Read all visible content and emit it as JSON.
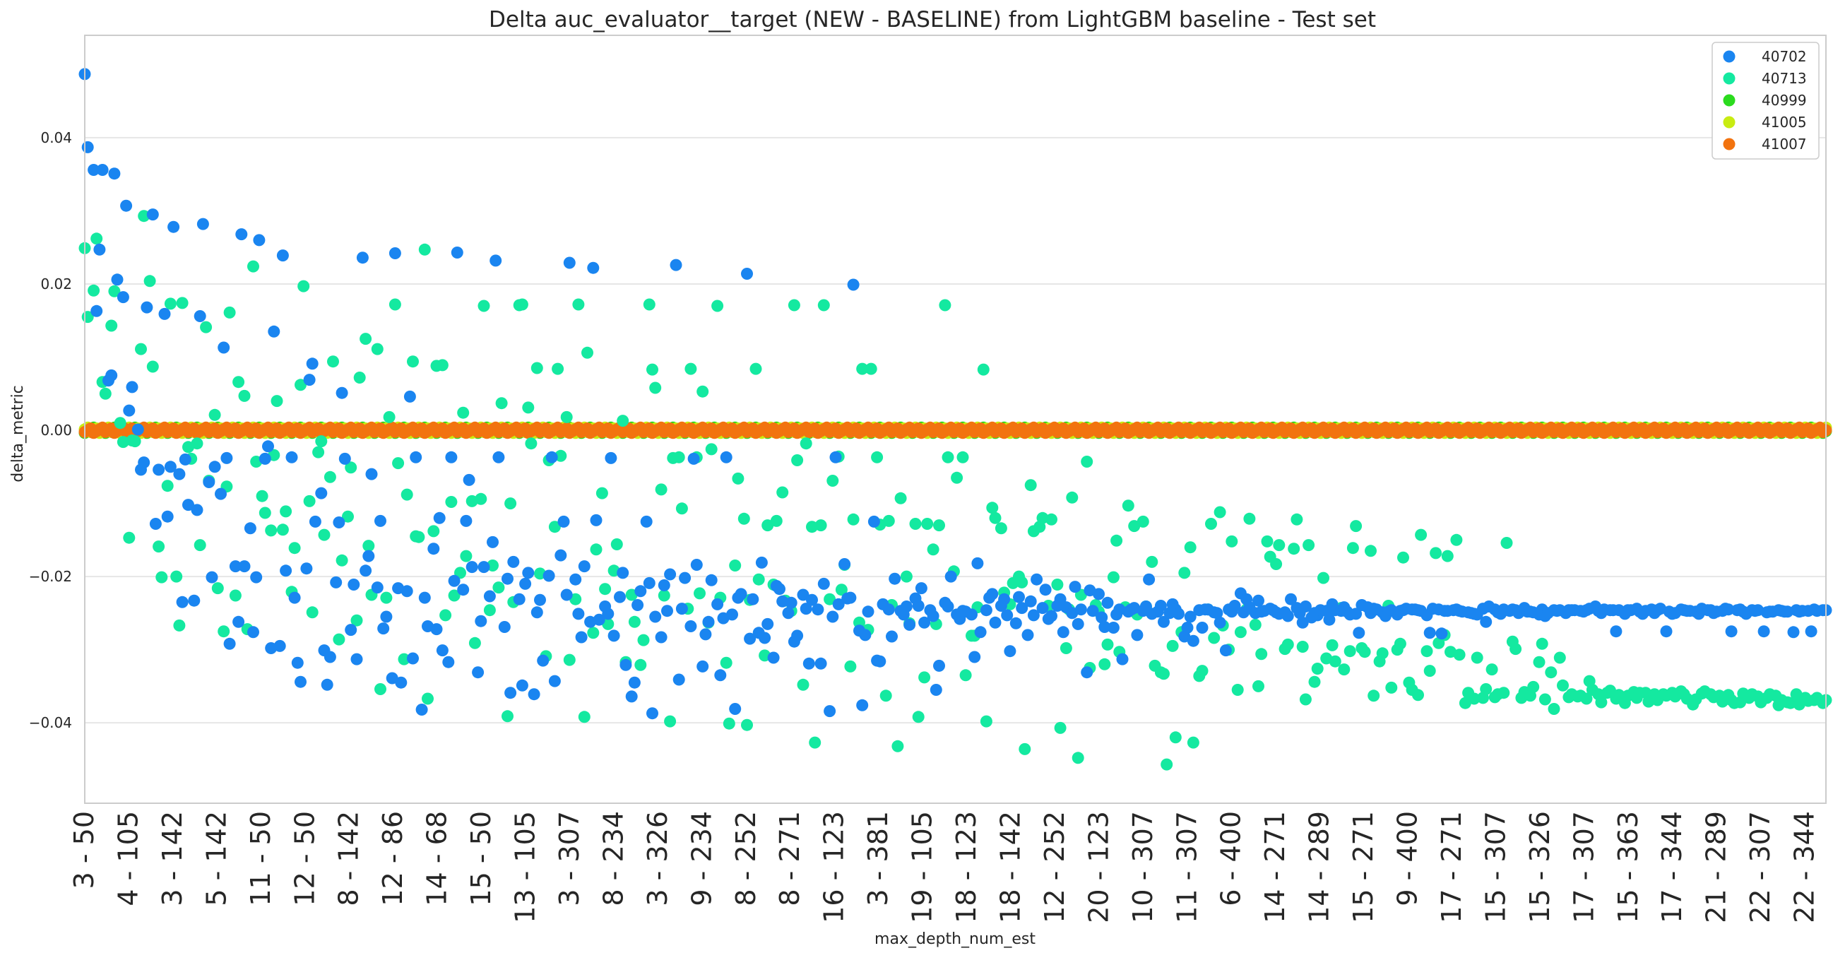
{
  "chart_data": {
    "type": "scatter",
    "title": "Delta auc_evaluator__target (NEW - BASELINE) from LightGBM baseline - Test set",
    "xlabel": "max_depth_num_est",
    "ylabel": "delta_metric",
    "ylim": [
      -0.051,
      0.054
    ],
    "y_ticks": [
      -0.04,
      -0.02,
      0.0,
      0.02,
      0.04
    ],
    "y_tick_labels": [
      "−0.04",
      "−0.02",
      "0.00",
      "0.02",
      "0.04"
    ],
    "x_tick_labels": [
      "3 - 50",
      "4 - 105",
      "3 - 142",
      "5 - 142",
      "11 - 50",
      "12 - 50",
      "8 - 142",
      "12 - 86",
      "14 - 68",
      "15 - 50",
      "13 - 105",
      "3 - 307",
      "8 - 234",
      "3 - 326",
      "9 - 234",
      "8 - 252",
      "8 - 271",
      "16 - 123",
      "3 - 381",
      "19 - 105",
      "18 - 123",
      "18 - 142",
      "12 - 252",
      "20 - 123",
      "10 - 307",
      "11 - 307",
      "6 - 400",
      "14 - 271",
      "14 - 289",
      "15 - 271",
      "9 - 400",
      "17 - 271",
      "15 - 307",
      "15 - 326",
      "17 - 307",
      "15 - 363",
      "17 - 344",
      "21 - 289",
      "22 - 307",
      "22 - 344"
    ],
    "grid": "horizontal",
    "legend_position": "top-right",
    "point_count": 590,
    "series": [
      {
        "name": "40702",
        "color": "#1a85f0",
        "values": [
          0.0487,
          0.0387,
          0.0356,
          0.0163,
          0.0247,
          0.0356,
          0.0068,
          0.0075,
          0.0351,
          0.0206,
          0.0182,
          0.0307,
          0.0027,
          0.0059,
          0.0001,
          -0.0054,
          -0.0044,
          0.0168,
          0.0295,
          -0.0128,
          -0.0054,
          0.0159,
          -0.0118,
          -0.005,
          0.0278,
          -0.006,
          -0.0235,
          -0.004,
          -0.0102,
          -0.0233,
          -0.0109,
          0.0156,
          0.0282,
          -0.0071,
          -0.0201,
          -0.005,
          -0.0087,
          0.0113,
          -0.0038,
          -0.0292,
          -0.0186,
          -0.0262,
          0.0268,
          -0.0186,
          -0.0134,
          -0.0276,
          -0.0201,
          0.026,
          -0.0039,
          -0.0022,
          -0.0298,
          0.0135,
          -0.0295,
          0.0239,
          -0.0192,
          -0.0037,
          -0.0229,
          -0.0318,
          -0.0344,
          -0.0189,
          0.0069,
          0.0091,
          -0.0125,
          -0.0086,
          -0.0301,
          -0.0348,
          -0.031,
          -0.0208,
          -0.0126,
          0.0051,
          -0.0039,
          -0.0273,
          -0.0211,
          -0.0313,
          0.0236,
          -0.0192,
          -0.0172,
          -0.006,
          -0.0215,
          -0.0124,
          -0.0271,
          -0.0255,
          -0.0339,
          0.0242,
          -0.0216,
          -0.0345,
          -0.022,
          0.0046,
          -0.0312,
          -0.0037,
          -0.0382,
          -0.0229,
          -0.0268,
          -0.0162,
          -0.0272,
          -0.012,
          -0.0301,
          -0.0317,
          -0.0037,
          -0.0206,
          0.0243,
          -0.0218,
          -0.0124,
          -0.0068,
          -0.0187,
          -0.0331,
          -0.0261,
          -0.0187,
          -0.0227,
          -0.0153,
          0.0232,
          -0.0037,
          -0.0269,
          -0.0203,
          -0.0359,
          -0.018,
          -0.0231,
          -0.0349,
          -0.021,
          -0.0195,
          -0.0361,
          -0.0249,
          -0.0232,
          -0.0315,
          -0.0199,
          -0.0037,
          -0.0343,
          -0.0171,
          -0.0125,
          -0.0225,
          0.0229,
          -0.0204,
          -0.0251,
          -0.0283,
          -0.0186,
          -0.0262,
          0.0222,
          -0.0123,
          -0.0259,
          -0.0241,
          -0.0251,
          -0.0038,
          -0.0281,
          -0.0228,
          -0.0195,
          -0.0321,
          -0.0364,
          -0.0345,
          -0.0239,
          -0.022,
          -0.0125,
          -0.0209,
          -0.0387,
          -0.0255,
          -0.0283,
          -0.0212,
          -0.0247,
          -0.0197,
          0.0226,
          -0.0341,
          -0.0244,
          -0.0202,
          -0.0268,
          -0.0039,
          -0.0184,
          -0.0323,
          -0.0279,
          -0.0262,
          -0.0205,
          -0.0238,
          -0.0335,
          -0.0257,
          -0.0037,
          -0.0252,
          -0.0381,
          -0.0229,
          -0.0224,
          0.0214,
          -0.0285,
          -0.0231,
          -0.0277,
          -0.0181,
          -0.0284,
          -0.0265,
          -0.0311,
          -0.0213,
          -0.0217,
          -0.0234,
          -0.025,
          -0.0236,
          -0.0289,
          -0.0281,
          -0.0225,
          -0.0244,
          -0.0319,
          -0.0232,
          -0.0245,
          -0.0319,
          -0.021,
          -0.0384,
          -0.0255,
          -0.0037,
          -0.0238,
          -0.0183,
          -0.023,
          -0.0229,
          0.0199,
          -0.0274,
          -0.0376,
          -0.028,
          -0.0248,
          -0.0125,
          -0.0315,
          -0.0316,
          -0.0238,
          -0.0245,
          -0.0282,
          -0.0203,
          -0.0247,
          -0.0252,
          -0.0241,
          -0.0266,
          -0.023,
          -0.024,
          -0.0216,
          -0.0263,
          -0.0246,
          -0.0254,
          -0.0355,
          -0.0322,
          -0.0236,
          -0.0241,
          -0.02,
          -0.0252,
          -0.0258,
          -0.0247,
          -0.0248,
          -0.0252,
          -0.031,
          -0.0182,
          -0.0276,
          -0.0246,
          -0.0229,
          -0.0224,
          -0.0263,
          -0.024,
          -0.0231,
          -0.0253,
          -0.0302,
          -0.0264,
          -0.0228,
          -0.0243,
          -0.028,
          -0.0234,
          -0.0253,
          -0.0204,
          -0.0243,
          -0.0218,
          -0.0258,
          -0.0254,
          -0.024,
          -0.0231,
          -0.0276,
          -0.0242,
          -0.025,
          -0.0214,
          -0.0265,
          -0.0245,
          -0.0331,
          -0.0219,
          -0.0247,
          -0.0224,
          -0.0256,
          -0.0269,
          -0.0236,
          -0.027,
          -0.0252,
          -0.0245,
          -0.0313,
          -0.0248,
          -0.0245,
          -0.0243,
          -0.028,
          -0.0247,
          -0.0241,
          -0.0204,
          -0.0251,
          -0.0248,
          -0.024,
          -0.0262,
          -0.025,
          -0.0238,
          -0.0245,
          -0.0251,
          -0.0282,
          -0.027,
          -0.0255,
          -0.0288,
          -0.0246,
          -0.027,
          -0.0245,
          -0.0245,
          -0.0249,
          -0.025,
          -0.0263,
          -0.0301,
          -0.0245,
          -0.0248,
          -0.024,
          -0.0223,
          -0.0249,
          -0.0231,
          -0.0242,
          -0.025,
          -0.0233,
          -0.0248,
          -0.0247,
          -0.0244,
          -0.0246,
          -0.0249,
          -0.0251,
          -0.0249,
          -0.0254,
          -0.0231,
          -0.0243,
          -0.025,
          -0.0263,
          -0.0241,
          -0.0256,
          -0.025,
          -0.0253,
          -0.0246,
          -0.0247,
          -0.0259,
          -0.0238,
          -0.0246,
          -0.0247,
          -0.0242,
          -0.0248,
          -0.0252,
          -0.0251,
          -0.0277,
          -0.0239,
          -0.0242,
          -0.025,
          -0.0244,
          -0.0245,
          -0.0249,
          -0.0254,
          -0.0248,
          -0.0246,
          -0.0252,
          -0.0247,
          -0.0246,
          -0.0244,
          -0.0245,
          -0.0245,
          -0.0246,
          -0.0247,
          -0.0253,
          -0.0277,
          -0.0244,
          -0.0245,
          -0.0278,
          -0.0247,
          -0.0247,
          -0.0246,
          -0.0245,
          -0.0247,
          -0.0248,
          -0.0249,
          -0.025,
          -0.0251,
          -0.0252,
          -0.0244,
          -0.0262,
          -0.0241,
          -0.0245,
          -0.0249,
          -0.0251,
          -0.0245,
          -0.0247,
          -0.0245,
          -0.0246,
          -0.025,
          -0.0243,
          -0.0248,
          -0.0248,
          -0.0249,
          -0.0252,
          -0.0245,
          -0.0254,
          -0.025,
          -0.0246,
          -0.0247,
          -0.0246,
          -0.025,
          -0.0246,
          -0.0246,
          -0.0246,
          -0.0247,
          -0.0248,
          -0.0246,
          -0.0244,
          -0.0241,
          -0.0247,
          -0.025,
          -0.0245,
          -0.0246,
          -0.0246,
          -0.0275,
          -0.0246,
          -0.0251,
          -0.0246,
          -0.0246,
          -0.0244,
          -0.0248,
          -0.0251,
          -0.0247,
          -0.0245,
          -0.025,
          -0.0246,
          -0.0244,
          -0.0275,
          -0.0248,
          -0.0251,
          -0.025,
          -0.0245,
          -0.0246,
          -0.0247,
          -0.0247,
          -0.0248,
          -0.0251,
          -0.0244,
          -0.0246,
          -0.0246,
          -0.025,
          -0.0248,
          -0.0247,
          -0.0244,
          -0.0245,
          -0.0275,
          -0.0246,
          -0.0245,
          -0.0248,
          -0.0251,
          -0.0246,
          -0.0247,
          -0.0246,
          -0.0275,
          -0.0249,
          -0.0248,
          -0.0248,
          -0.0246,
          -0.0247,
          -0.0248,
          -0.0248,
          -0.0276,
          -0.0246,
          -0.0248,
          -0.0247,
          -0.0247,
          -0.0275,
          -0.0245,
          -0.0247,
          -0.0246,
          -0.0246
        ]
      },
      {
        "name": "40713",
        "color": "#14e9a0",
        "values": [
          0.0249,
          0.0155,
          0.0191,
          0.0262,
          0.0066,
          0.005,
          0.0143,
          0.019,
          0.001,
          -0.0016,
          -0.0147,
          -0.0014,
          -0.0015,
          0.0111,
          0.0293,
          0.0204,
          0.0087,
          -0.0159,
          -0.0201,
          -0.0076,
          0.0173,
          -0.02,
          -0.0267,
          0.0174,
          -0.0023,
          -0.0039,
          -0.0018,
          -0.0157,
          0.0141,
          -0.0069,
          0.0021,
          -0.0216,
          -0.0275,
          -0.0077,
          0.0161,
          -0.0226,
          0.0066,
          0.0047,
          -0.0272,
          0.0224,
          -0.0043,
          -0.009,
          -0.0113,
          -0.0137,
          -0.0034,
          0.004,
          -0.0136,
          -0.0111,
          -0.0221,
          -0.0161,
          0.0062,
          0.0197,
          -0.0097,
          -0.0249,
          -0.003,
          -0.0015,
          -0.0143,
          -0.0064,
          0.0094,
          -0.0286,
          -0.0178,
          -0.0118,
          -0.0051,
          -0.026,
          0.0072,
          0.0125,
          -0.0158,
          -0.0225,
          0.0111,
          -0.0354,
          -0.0229,
          0.0018,
          0.0172,
          -0.0045,
          -0.0313,
          -0.0088,
          0.0094,
          -0.0145,
          -0.0146,
          0.0247,
          -0.0367,
          -0.0138,
          0.0088,
          0.0089,
          -0.0253,
          -0.0098,
          -0.0226,
          -0.0195,
          0.0024,
          -0.0172,
          -0.0097,
          -0.0291,
          -0.0094,
          0.017,
          -0.0246,
          -0.0185,
          -0.0215,
          0.0037,
          -0.0391,
          -0.01,
          -0.0235,
          0.0171,
          0.0172,
          0.0031,
          -0.0018,
          0.0085,
          -0.0196,
          -0.0309,
          -0.0041,
          -0.0132,
          0.0084,
          -0.0035,
          0.0018,
          -0.0314,
          -0.0231,
          0.0172,
          -0.0392,
          0.0106,
          -0.0277,
          -0.0163,
          -0.0086,
          -0.0217,
          -0.0265,
          -0.0192,
          -0.0156,
          0.0013,
          -0.0317,
          -0.0225,
          -0.0262,
          -0.0321,
          -0.0287,
          0.0172,
          0.0083,
          0.0058,
          -0.0081,
          -0.0226,
          -0.0398,
          -0.0038,
          -0.0037,
          -0.0107,
          -0.0244,
          0.0084,
          -0.0037,
          -0.0223,
          0.0053,
          -0.0263,
          -0.0026,
          0.017,
          -0.0229,
          -0.0318,
          -0.0401,
          -0.0185,
          -0.0066,
          -0.0121,
          -0.0403,
          -0.0232,
          0.0084,
          -0.0204,
          -0.0308,
          -0.013,
          -0.0211,
          -0.0124,
          -0.0085,
          -0.0233,
          -0.0247,
          0.0171,
          -0.0041,
          -0.0348,
          -0.0018,
          -0.0132,
          -0.0427,
          -0.013,
          0.0171,
          -0.0231,
          -0.0069,
          -0.0036,
          -0.0218,
          -0.0184,
          -0.0323,
          -0.0122,
          -0.0263,
          0.0084,
          -0.0273,
          0.0084,
          -0.0037,
          -0.0129,
          -0.0363,
          -0.0124,
          -0.0239,
          -0.0432,
          -0.0093,
          -0.02,
          -0.0264,
          -0.0128,
          -0.0392,
          -0.0338,
          -0.0128,
          -0.0163,
          -0.0265,
          -0.013,
          0.0171,
          -0.0037,
          -0.0193,
          -0.0065,
          -0.0037,
          -0.0335,
          -0.0281,
          -0.0281,
          -0.0242,
          0.0083,
          -0.0398,
          -0.0106,
          -0.012,
          -0.0134,
          -0.0222,
          -0.0238,
          -0.0209,
          -0.02,
          -0.0208,
          -0.0436,
          -0.0075,
          -0.0138,
          -0.0132,
          -0.012,
          -0.024,
          -0.0122,
          -0.0211,
          -0.0407,
          -0.0298,
          -0.0245,
          -0.0092,
          -0.0448,
          -0.0225,
          -0.0043,
          -0.0325,
          -0.0239,
          -0.0248,
          -0.032,
          -0.0293,
          -0.0201,
          -0.0151,
          -0.0303,
          -0.0242,
          -0.0103,
          -0.0131,
          -0.0252,
          -0.0125,
          -0.0241,
          -0.018,
          -0.0322,
          -0.0331,
          -0.0333,
          -0.0457,
          -0.0295,
          -0.042,
          -0.0276,
          -0.0195,
          -0.016,
          -0.0427,
          -0.0336,
          -0.0329,
          -0.0245,
          -0.0128,
          -0.0284,
          -0.0112,
          -0.0267,
          -0.03,
          -0.0152,
          -0.0355,
          -0.0276,
          -0.0245,
          -0.0121,
          -0.0266,
          -0.035,
          -0.0306,
          -0.0152,
          -0.0173,
          -0.0183,
          -0.0157,
          -0.0299,
          -0.0293,
          -0.0162,
          -0.0122,
          -0.0296,
          -0.0368,
          -0.0157,
          -0.0344,
          -0.0326,
          -0.0202,
          -0.0312,
          -0.0294,
          -0.0316,
          -0.0243,
          -0.0327,
          -0.0302,
          -0.0161,
          -0.0131,
          -0.0298,
          -0.0303,
          -0.0165,
          -0.0363,
          -0.0316,
          -0.0305,
          -0.024,
          -0.0352,
          -0.03,
          -0.0292,
          -0.0174,
          -0.0345,
          -0.0355,
          -0.0362,
          -0.0143,
          -0.0302,
          -0.0329,
          -0.0168,
          -0.0291,
          -0.028,
          -0.0172,
          -0.0303,
          -0.015,
          -0.0307,
          -0.0373,
          -0.0359,
          -0.0367,
          -0.0311,
          -0.0366,
          -0.0354,
          -0.0327,
          -0.0365,
          -0.0361,
          -0.0359,
          -0.0154,
          -0.0289,
          -0.0299,
          -0.0366,
          -0.0358,
          -0.0363,
          -0.0351,
          -0.0317,
          -0.0292,
          -0.0368,
          -0.0331,
          -0.0381,
          -0.0311,
          -0.0349,
          -0.0365,
          -0.0361,
          -0.0364,
          -0.0363,
          -0.0367,
          -0.0343,
          -0.0355,
          -0.0361,
          -0.0372,
          -0.0359,
          -0.0356,
          -0.0367,
          -0.0362,
          -0.0373,
          -0.0363,
          -0.0358,
          -0.0366,
          -0.0359,
          -0.0359,
          -0.0371,
          -0.0361,
          -0.0369,
          -0.0361,
          -0.0363,
          -0.0359,
          -0.0364,
          -0.0357,
          -0.0361,
          -0.0367,
          -0.0375,
          -0.0368,
          -0.036,
          -0.0357,
          -0.0361,
          -0.0365,
          -0.0363,
          -0.0371,
          -0.0362,
          -0.0369,
          -0.0373,
          -0.0372,
          -0.036,
          -0.0366,
          -0.0361,
          -0.0364,
          -0.0372,
          -0.0366,
          -0.0361,
          -0.0363,
          -0.0376,
          -0.0369,
          -0.0372,
          -0.0373,
          -0.0361,
          -0.0375,
          -0.0366,
          -0.037,
          -0.0369,
          -0.0366,
          -0.0373,
          -0.0369
        ]
      },
      {
        "name": "40999",
        "color": "#2bdb1e",
        "values": [
          0.0
        ]
      },
      {
        "name": "41005",
        "color": "#c8ec12",
        "values": [
          0.0
        ]
      },
      {
        "name": "41007",
        "color": "#f2730f",
        "values": [
          0.0
        ]
      }
    ]
  }
}
